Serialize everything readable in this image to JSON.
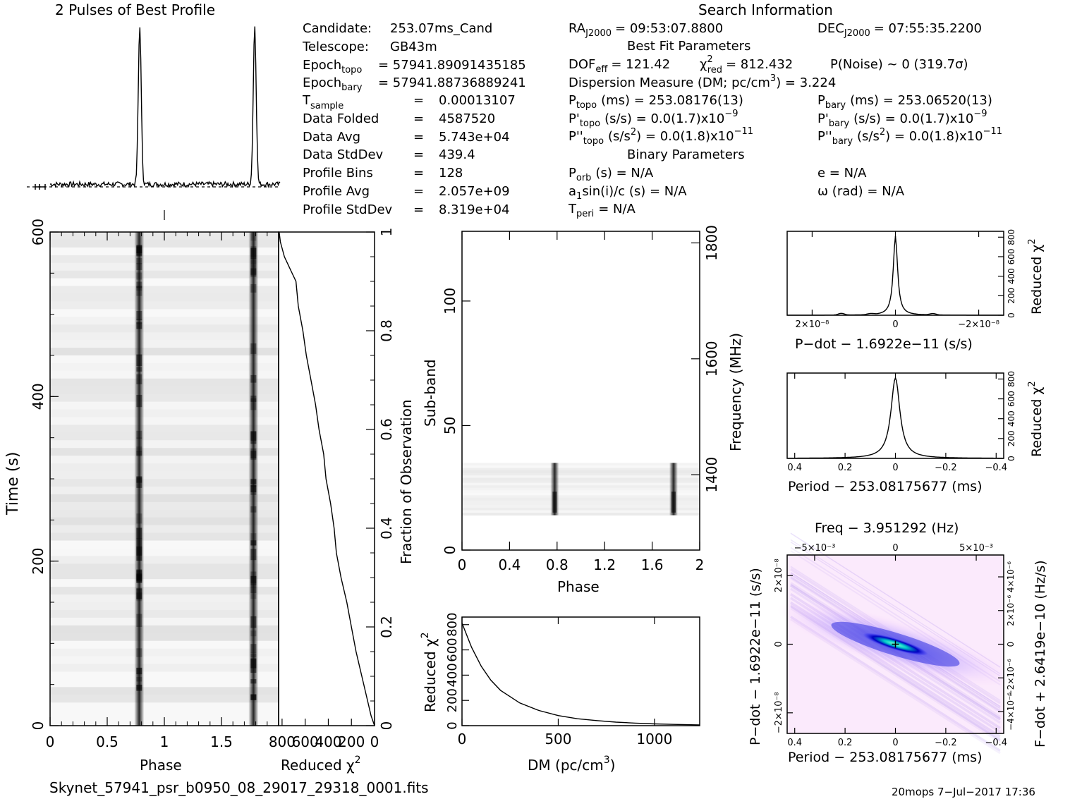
{
  "profile_title": "2 Pulses of Best Profile",
  "search_title": "Search Information",
  "info": {
    "candidate_label": "Candidate:",
    "candidate_value": "253.07ms_Cand",
    "telescope_label": "Telescope:",
    "telescope_value": "GB43m",
    "epoch_topo_label": "Epoch",
    "epoch_topo_sub": "topo",
    "epoch_topo_value": "= 57941.89091435185",
    "epoch_bary_label": "Epoch",
    "epoch_bary_sub": "bary",
    "epoch_bary_value": "= 57941.88736889241",
    "tsample_label": "T",
    "tsample_sub": "sample",
    "tsample_value": "0.00013107",
    "data_folded_label": "Data Folded",
    "data_folded_value": "4587520",
    "data_avg_label": "Data Avg",
    "data_avg_value": "5.743e+04",
    "data_stddev_label": "Data StdDev",
    "data_stddev_value": "439.4",
    "profile_bins_label": "Profile Bins",
    "profile_bins_value": "128",
    "profile_avg_label": "Profile Avg",
    "profile_avg_value": "2.057e+09",
    "profile_stddev_label": "Profile StdDev",
    "profile_stddev_value": "8.319e+04",
    "eq": "="
  },
  "search": {
    "ra_label": "RA",
    "ra_sub": "J2000",
    "ra_value": "= 09:53:07.8800",
    "dec_label": "DEC",
    "dec_sub": "J2000",
    "dec_value": "= 07:55:35.2200",
    "best_fit_title": "Best Fit Parameters",
    "dof_text": "DOF",
    "dof_sub": "eff",
    "dof_value": "= 121.42",
    "chi_sym": "χ",
    "chi_sup": "2",
    "chi_sub": "red",
    "chi_value": "= 812.432",
    "pnoise": "P(Noise) ~ 0    (319.7σ)",
    "dm_text": "Dispersion Measure (DM; pc/cm",
    "dm_sup": "3",
    "dm_value": ") = 3.224",
    "ptopo_label": "P",
    "ptopo_sub": "topo",
    "ptopo_value": "(ms) =  253.08176(13)",
    "pbary_label": "P",
    "pbary_sub": "bary",
    "pbary_value": "(ms) =  253.06520(13)",
    "pdtopo_label": "P'",
    "pdtopo_sub": "topo",
    "pdtopo_value": "(s/s) = 0.0(1.7)x10",
    "pdtopo_exp": "−9",
    "pdbary_label": "P'",
    "pdbary_sub": "bary",
    "pdbary_value": "(s/s) = 0.0(1.7)x10",
    "pdbary_exp": "−9",
    "pddtopo_label": "P''",
    "pddtopo_sub": "topo",
    "pddtopo_value": "(s/s",
    "pddtopo_sup2": "2",
    "pddtopo_value2": ") = 0.0(1.8)x10",
    "pddtopo_exp": "−11",
    "pddbary_label": "P''",
    "pddbary_sub": "bary",
    "pddbary_value": "(s/s",
    "pddbary_sup2": "2",
    "pddbary_value2": ") = 0.0(1.8)x10",
    "pddbary_exp": "−11",
    "binary_title": "Binary Parameters",
    "porb_label": "P",
    "porb_sub": "orb",
    "porb_value": "(s) = N/A",
    "e_text": "e = N/A",
    "a1_text": "a",
    "a1_sub": "1",
    "a1_value": "sin(i)/c (s) = N/A",
    "omega_text": "ω (rad) = N/A",
    "tperi_label": "T",
    "tperi_sub": "peri",
    "tperi_value": "= N/A"
  },
  "footer": {
    "filename": "Skynet_57941_psr_b0950_08_29017_29318_0001.fits",
    "stamp": "20mops   7−Jul−2017 17:36"
  },
  "chart_data": [
    {
      "type": "line",
      "name": "profile",
      "title": "2 Pulses of Best Profile",
      "x_range": [
        0,
        2
      ],
      "peaks_phase": [
        0.78,
        1.78
      ],
      "baseline_level": 0.05,
      "peak_level": 1.0
    },
    {
      "type": "heatmap",
      "name": "time-phase",
      "xlabel": "Phase",
      "ylabel": "Time (s)",
      "x_ticks": [
        "0",
        "0.5",
        "1",
        "1.5"
      ],
      "x_tick_values": [
        0,
        0.5,
        1,
        1.5
      ],
      "y_ticks": [
        "0",
        "200",
        "400",
        "600"
      ],
      "y_tick_values": [
        0,
        200,
        400,
        600
      ],
      "xlim": [
        0,
        2
      ],
      "ylim": [
        0,
        600
      ],
      "pulse_phase": [
        0.78,
        1.78
      ]
    },
    {
      "type": "line",
      "name": "time-chi2",
      "xlabel": "Reduced χ",
      "xlabel_sup": "2",
      "x_ticks": [
        "800",
        "600",
        "400",
        "200",
        "0"
      ],
      "x_tick_values": [
        800,
        600,
        400,
        200,
        0
      ],
      "right_label": "Fraction of Observation",
      "right_ticks": [
        "0",
        "0.2",
        "0.4",
        "0.6",
        "0.8",
        "1"
      ],
      "right_tick_values": [
        0,
        0.2,
        0.4,
        0.6,
        0.8,
        1
      ],
      "xlim": [
        0,
        830
      ],
      "fraction": [
        0,
        0.02,
        0.05,
        0.1,
        0.15,
        0.2,
        0.25,
        0.3,
        0.35,
        0.4,
        0.45,
        0.5,
        0.55,
        0.6,
        0.65,
        0.7,
        0.75,
        0.8,
        0.85,
        0.9,
        0.92,
        0.95,
        0.98,
        1.0
      ],
      "chi2": [
        0,
        30,
        60,
        110,
        160,
        200,
        240,
        290,
        330,
        350,
        380,
        420,
        440,
        480,
        510,
        550,
        590,
        620,
        660,
        680,
        720,
        780,
        815,
        825
      ]
    },
    {
      "type": "heatmap",
      "name": "subband-phase",
      "xlabel": "Phase",
      "ylabel": "Sub-band",
      "x_ticks": [
        "0",
        "0.4",
        "0.8",
        "1.2",
        "1.6",
        "2"
      ],
      "x_tick_values": [
        0,
        0.4,
        0.8,
        1.2,
        1.6,
        2
      ],
      "y_ticks": [
        "0",
        "50",
        "100"
      ],
      "y_tick_values": [
        0,
        50,
        100
      ],
      "right_label": "Frequency (MHz)",
      "right_ticks": [
        "1400",
        "1600",
        "1800"
      ],
      "right_tick_values": [
        1400,
        1600,
        1800
      ],
      "xlim": [
        0,
        2
      ],
      "ylim": [
        0,
        128
      ],
      "band_range": [
        14,
        35
      ],
      "pulse_phase": [
        0.78,
        1.78
      ]
    },
    {
      "type": "line",
      "name": "dm-chi2",
      "xlabel": "DM (pc/cm",
      "xlabel_sup": "3",
      "xlabel_end": ")",
      "ylabel": "Reduced χ",
      "ylabel_sup": "2",
      "x_ticks": [
        "0",
        "500",
        "1000"
      ],
      "x_tick_values": [
        0,
        500,
        1000
      ],
      "y_ticks": [
        "0",
        "200",
        "400",
        "600",
        "800"
      ],
      "y_tick_values": [
        0,
        200,
        400,
        600,
        800
      ],
      "xlim": [
        0,
        1235
      ],
      "ylim": [
        0,
        860
      ],
      "x": [
        0,
        50,
        100,
        150,
        200,
        300,
        400,
        500,
        600,
        700,
        800,
        900,
        1000,
        1100,
        1235
      ],
      "y": [
        812,
        620,
        470,
        360,
        280,
        180,
        120,
        80,
        55,
        40,
        28,
        20,
        14,
        10,
        6
      ]
    },
    {
      "type": "line",
      "name": "pdot-chi2",
      "xlabel": "P−dot − 1.6922e−11 (s/s)",
      "ylabel": "Reduced χ",
      "ylabel_sup": "2",
      "x_ticks": [
        "2×10⁻⁸",
        "0",
        "−2×10⁻⁸"
      ],
      "x_tick_values": [
        2e-08,
        0,
        -2e-08
      ],
      "y_ticks": [
        "0",
        "200",
        "400",
        "600",
        "800"
      ],
      "y_tick_values": [
        0,
        200,
        400,
        600,
        800
      ],
      "xlim": [
        2.6e-08,
        -2.6e-08
      ],
      "ylim": [
        0,
        860
      ],
      "peak_value": 812
    },
    {
      "type": "line",
      "name": "period-chi2",
      "xlabel": "Period − 253.08175677 (ms)",
      "ylabel": "Reduced χ",
      "ylabel_sup": "2",
      "x_ticks": [
        "0.4",
        "0.2",
        "0",
        "−0.2",
        "−0.4"
      ],
      "x_tick_values": [
        0.4,
        0.2,
        0,
        -0.2,
        -0.4
      ],
      "y_ticks": [
        "0",
        "200",
        "400",
        "600",
        "800"
      ],
      "y_tick_values": [
        0,
        200,
        400,
        600,
        800
      ],
      "xlim": [
        0.43,
        -0.43
      ],
      "ylim": [
        0,
        860
      ],
      "peak_value": 812
    },
    {
      "type": "heatmap",
      "name": "period-pdot",
      "title": "Freq − 3.951292 (Hz)",
      "xlabel": "Period − 253.08175677 (ms)",
      "ylabel": "P−dot − 1.6922e−11 (s/s)",
      "right_label": "F−dot + 2.6419e−10 (Hz/s)",
      "x_ticks": [
        "0.4",
        "0.2",
        "0",
        "−0.2",
        "−0.4"
      ],
      "x_tick_values": [
        0.4,
        0.2,
        0,
        -0.2,
        -0.4
      ],
      "top_ticks": [
        "−5×10⁻³",
        "0",
        "5×10⁻³"
      ],
      "top_tick_values": [
        -0.005,
        0,
        0.005
      ],
      "y_ticks": [
        "2×10⁻⁸",
        "0",
        "−2×10⁻⁸"
      ],
      "y_tick_values": [
        2e-08,
        0,
        -2e-08
      ],
      "right_ticks": [
        "−4×10⁻⁶",
        "−2×10⁻⁶",
        "0",
        "2×10⁻⁶",
        "4×10⁻⁶"
      ],
      "right_tick_values": [
        -4e-06,
        -2e-06,
        0,
        2e-06,
        4e-06
      ],
      "xlim": [
        0.43,
        -0.43
      ],
      "ylim": [
        2.6e-08,
        -2.6e-08
      ],
      "best_fit": [
        0,
        0
      ]
    }
  ]
}
